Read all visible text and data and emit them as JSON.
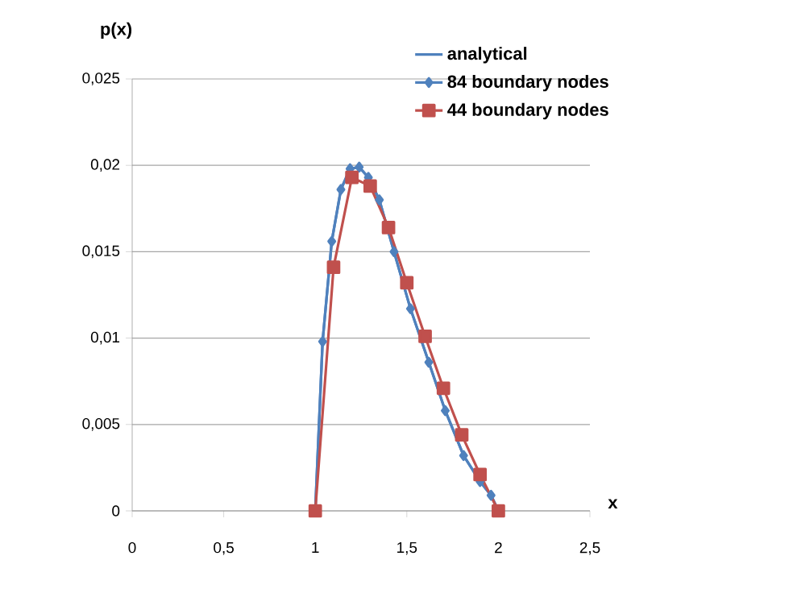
{
  "chart_data": {
    "type": "line",
    "xlabel": "x",
    "ylabel": "p(x)",
    "xlim": [
      0,
      2.5
    ],
    "ylim": [
      0,
      0.025
    ],
    "xticks": [
      0,
      {
        "value": 0.5,
        "label": "0,5"
      },
      1,
      {
        "value": 1.5,
        "label": "1,5"
      },
      2,
      {
        "value": 2.5,
        "label": "2,5"
      }
    ],
    "yticks": [
      0,
      {
        "value": 0.005,
        "label": "0,005"
      },
      {
        "value": 0.01,
        "label": "0,01"
      },
      {
        "value": 0.015,
        "label": "0,015"
      },
      {
        "value": 0.02,
        "label": "0,02"
      },
      {
        "value": 0.025,
        "label": "0,025"
      }
    ],
    "grid": "y",
    "legend": "top right",
    "series": [
      {
        "name": "44 boundary nodes",
        "color": "#c0504d",
        "marker": "square",
        "x": [
          1.0,
          1.1,
          1.2,
          1.3,
          1.4,
          1.5,
          1.6,
          1.7,
          1.8,
          1.9,
          2.0
        ],
        "values": [
          0,
          0.0141,
          0.0193,
          0.0188,
          0.0164,
          0.0132,
          0.0101,
          0.0071,
          0.0044,
          0.0021,
          0
        ]
      },
      {
        "name": "84 boundary nodes",
        "color": "#4f81bd",
        "marker": "diamond",
        "x": [
          1.0,
          1.04,
          1.09,
          1.14,
          1.19,
          1.24,
          1.29,
          1.35,
          1.43,
          1.52,
          1.62,
          1.71,
          1.81,
          1.9,
          1.96,
          2.0
        ],
        "values": [
          0,
          0.0098,
          0.0156,
          0.0186,
          0.0198,
          0.0199,
          0.0193,
          0.018,
          0.015,
          0.0117,
          0.0086,
          0.0058,
          0.0032,
          0.0017,
          0.0009,
          0
        ]
      },
      {
        "name": "analytical",
        "color": "#4f81bd",
        "marker": "none",
        "x": [
          1.0,
          1.04,
          1.09,
          1.14,
          1.19,
          1.24,
          1.29,
          1.35,
          1.43,
          1.52,
          1.62,
          1.71,
          1.81,
          1.9,
          1.96,
          2.0
        ],
        "values": [
          0,
          0.0098,
          0.0156,
          0.0186,
          0.0198,
          0.0199,
          0.0193,
          0.018,
          0.015,
          0.0117,
          0.0086,
          0.0058,
          0.0032,
          0.0017,
          0.0009,
          0
        ]
      }
    ]
  }
}
